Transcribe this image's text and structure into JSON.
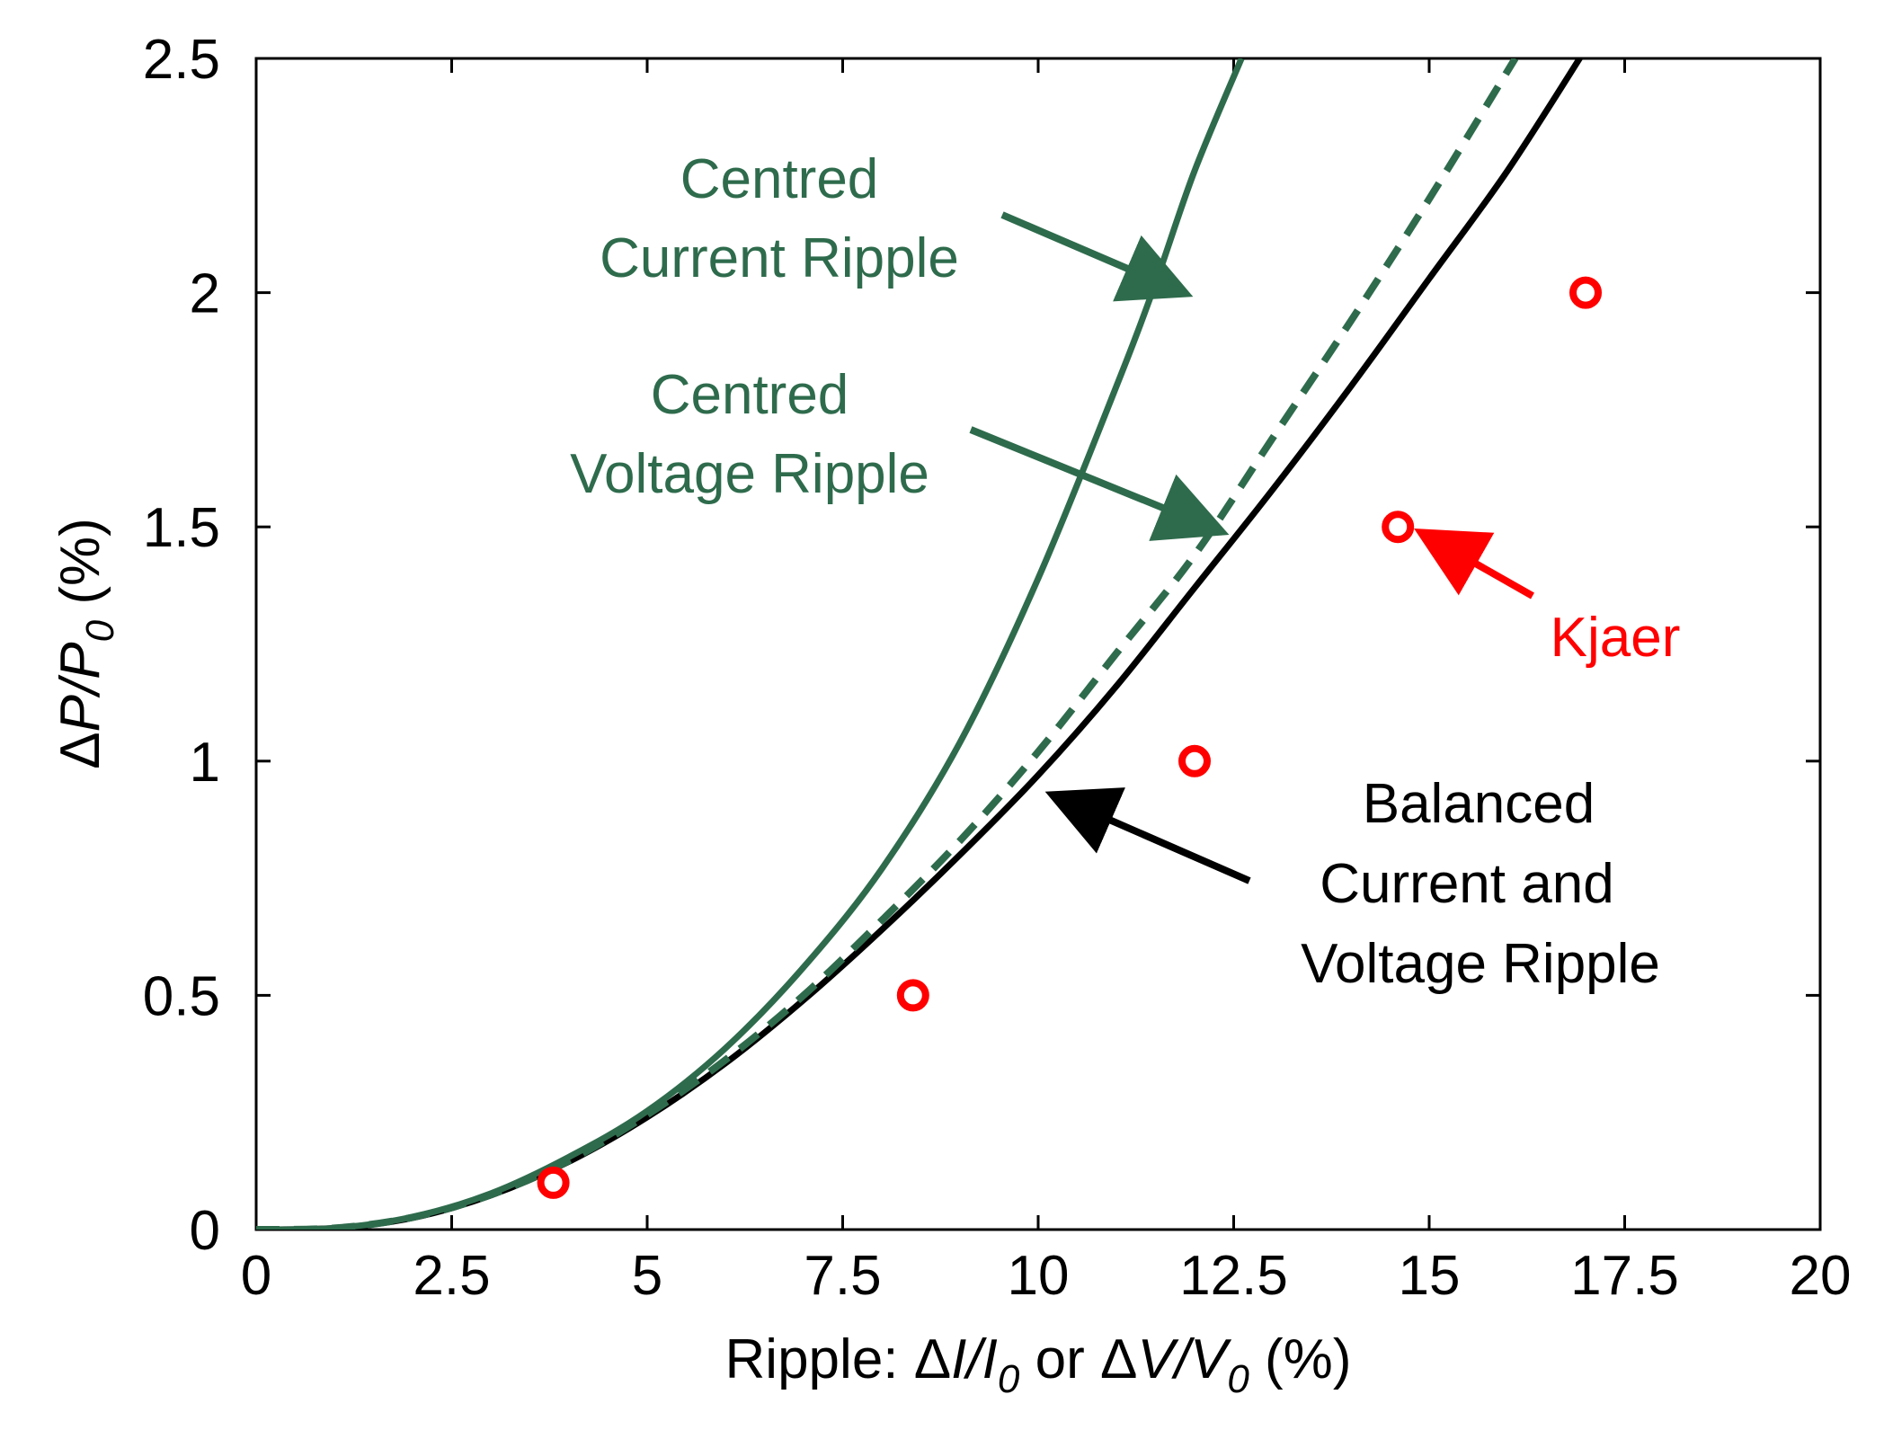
{
  "chart_data": {
    "type": "line",
    "xlabel": {
      "prefix": "Ripple: ",
      "delta1": "Δ",
      "var1": "I",
      "slash1": "/",
      "var1b": "I",
      "sub1": "0",
      "or": " or ",
      "delta2": "Δ",
      "var2": "V",
      "slash2": "/",
      "var2b": "V",
      "sub2": "0",
      "units": " (%)"
    },
    "ylabel": {
      "delta": "Δ",
      "var": "P",
      "slash": "/",
      "varb": "P",
      "sub": "0",
      "units": " (%)"
    },
    "xlim": [
      0,
      20
    ],
    "ylim": [
      0,
      2.5
    ],
    "xticks": [
      "0",
      "2.5",
      "5",
      "7.5",
      "10",
      "12.5",
      "15",
      "17.5",
      "20"
    ],
    "xtick_values": [
      0,
      2.5,
      5,
      7.5,
      10,
      12.5,
      15,
      17.5,
      20
    ],
    "yticks": [
      "0",
      "0.5",
      "1",
      "1.5",
      "2",
      "2.5"
    ],
    "ytick_values": [
      0,
      0.5,
      1,
      1.5,
      2,
      2.5
    ],
    "grid": false,
    "series": [
      {
        "name": "Centred Current Ripple",
        "style": "solid",
        "color": "#2e6b4c",
        "x": [
          0,
          1,
          2,
          3,
          4,
          5,
          6,
          7,
          8,
          9,
          10,
          11,
          11.5,
          12,
          12.6
        ],
        "y": [
          0,
          0.003,
          0.027,
          0.077,
          0.155,
          0.253,
          0.387,
          0.56,
          0.77,
          1.04,
          1.39,
          1.8,
          2.02,
          2.26,
          2.5
        ]
      },
      {
        "name": "Centred Voltage Ripple",
        "style": "dashed",
        "color": "#2e6b4c",
        "x": [
          0,
          1,
          2,
          3,
          4,
          5,
          6,
          7,
          8,
          9,
          10,
          11,
          12,
          13,
          14,
          15,
          16.1
        ],
        "y": [
          0,
          0.003,
          0.026,
          0.074,
          0.147,
          0.245,
          0.362,
          0.5,
          0.66,
          0.83,
          1.02,
          1.23,
          1.44,
          1.69,
          1.94,
          2.2,
          2.5
        ]
      },
      {
        "name": "Balanced Current and Voltage Ripple",
        "style": "solid",
        "color": "#000000",
        "x": [
          0,
          1,
          2,
          3,
          4,
          5,
          6,
          7,
          8,
          9,
          10,
          11,
          12,
          13,
          14,
          15,
          16,
          17
        ],
        "y": [
          0,
          0.003,
          0.025,
          0.073,
          0.145,
          0.24,
          0.355,
          0.49,
          0.64,
          0.8,
          0.97,
          1.16,
          1.37,
          1.58,
          1.8,
          2.03,
          2.26,
          2.52
        ]
      },
      {
        "name": "Kjaer",
        "style": "markers",
        "color": "#ff0000",
        "x": [
          3.8,
          8.4,
          12.0,
          14.6,
          17.0
        ],
        "y": [
          0.1,
          0.5,
          1.0,
          1.5,
          2.0
        ]
      }
    ],
    "annotations": [
      {
        "lines": [
          "Centred",
          "Current Ripple"
        ],
        "color": "#2e6b4c",
        "arrow_target": {
          "x": 12.0,
          "y": 2.0
        }
      },
      {
        "lines": [
          "Centred",
          "Voltage Ripple"
        ],
        "color": "#2e6b4c",
        "arrow_target": {
          "x": 12.35,
          "y": 1.48
        }
      },
      {
        "lines": [
          "Kjaer"
        ],
        "color": "#ff0000",
        "arrow_target": {
          "x": 14.8,
          "y": 1.47
        }
      },
      {
        "lines": [
          "Balanced",
          "Current and",
          "Voltage Ripple"
        ],
        "color": "#000000",
        "arrow_target": {
          "x": 10.05,
          "y": 0.92
        }
      }
    ]
  }
}
